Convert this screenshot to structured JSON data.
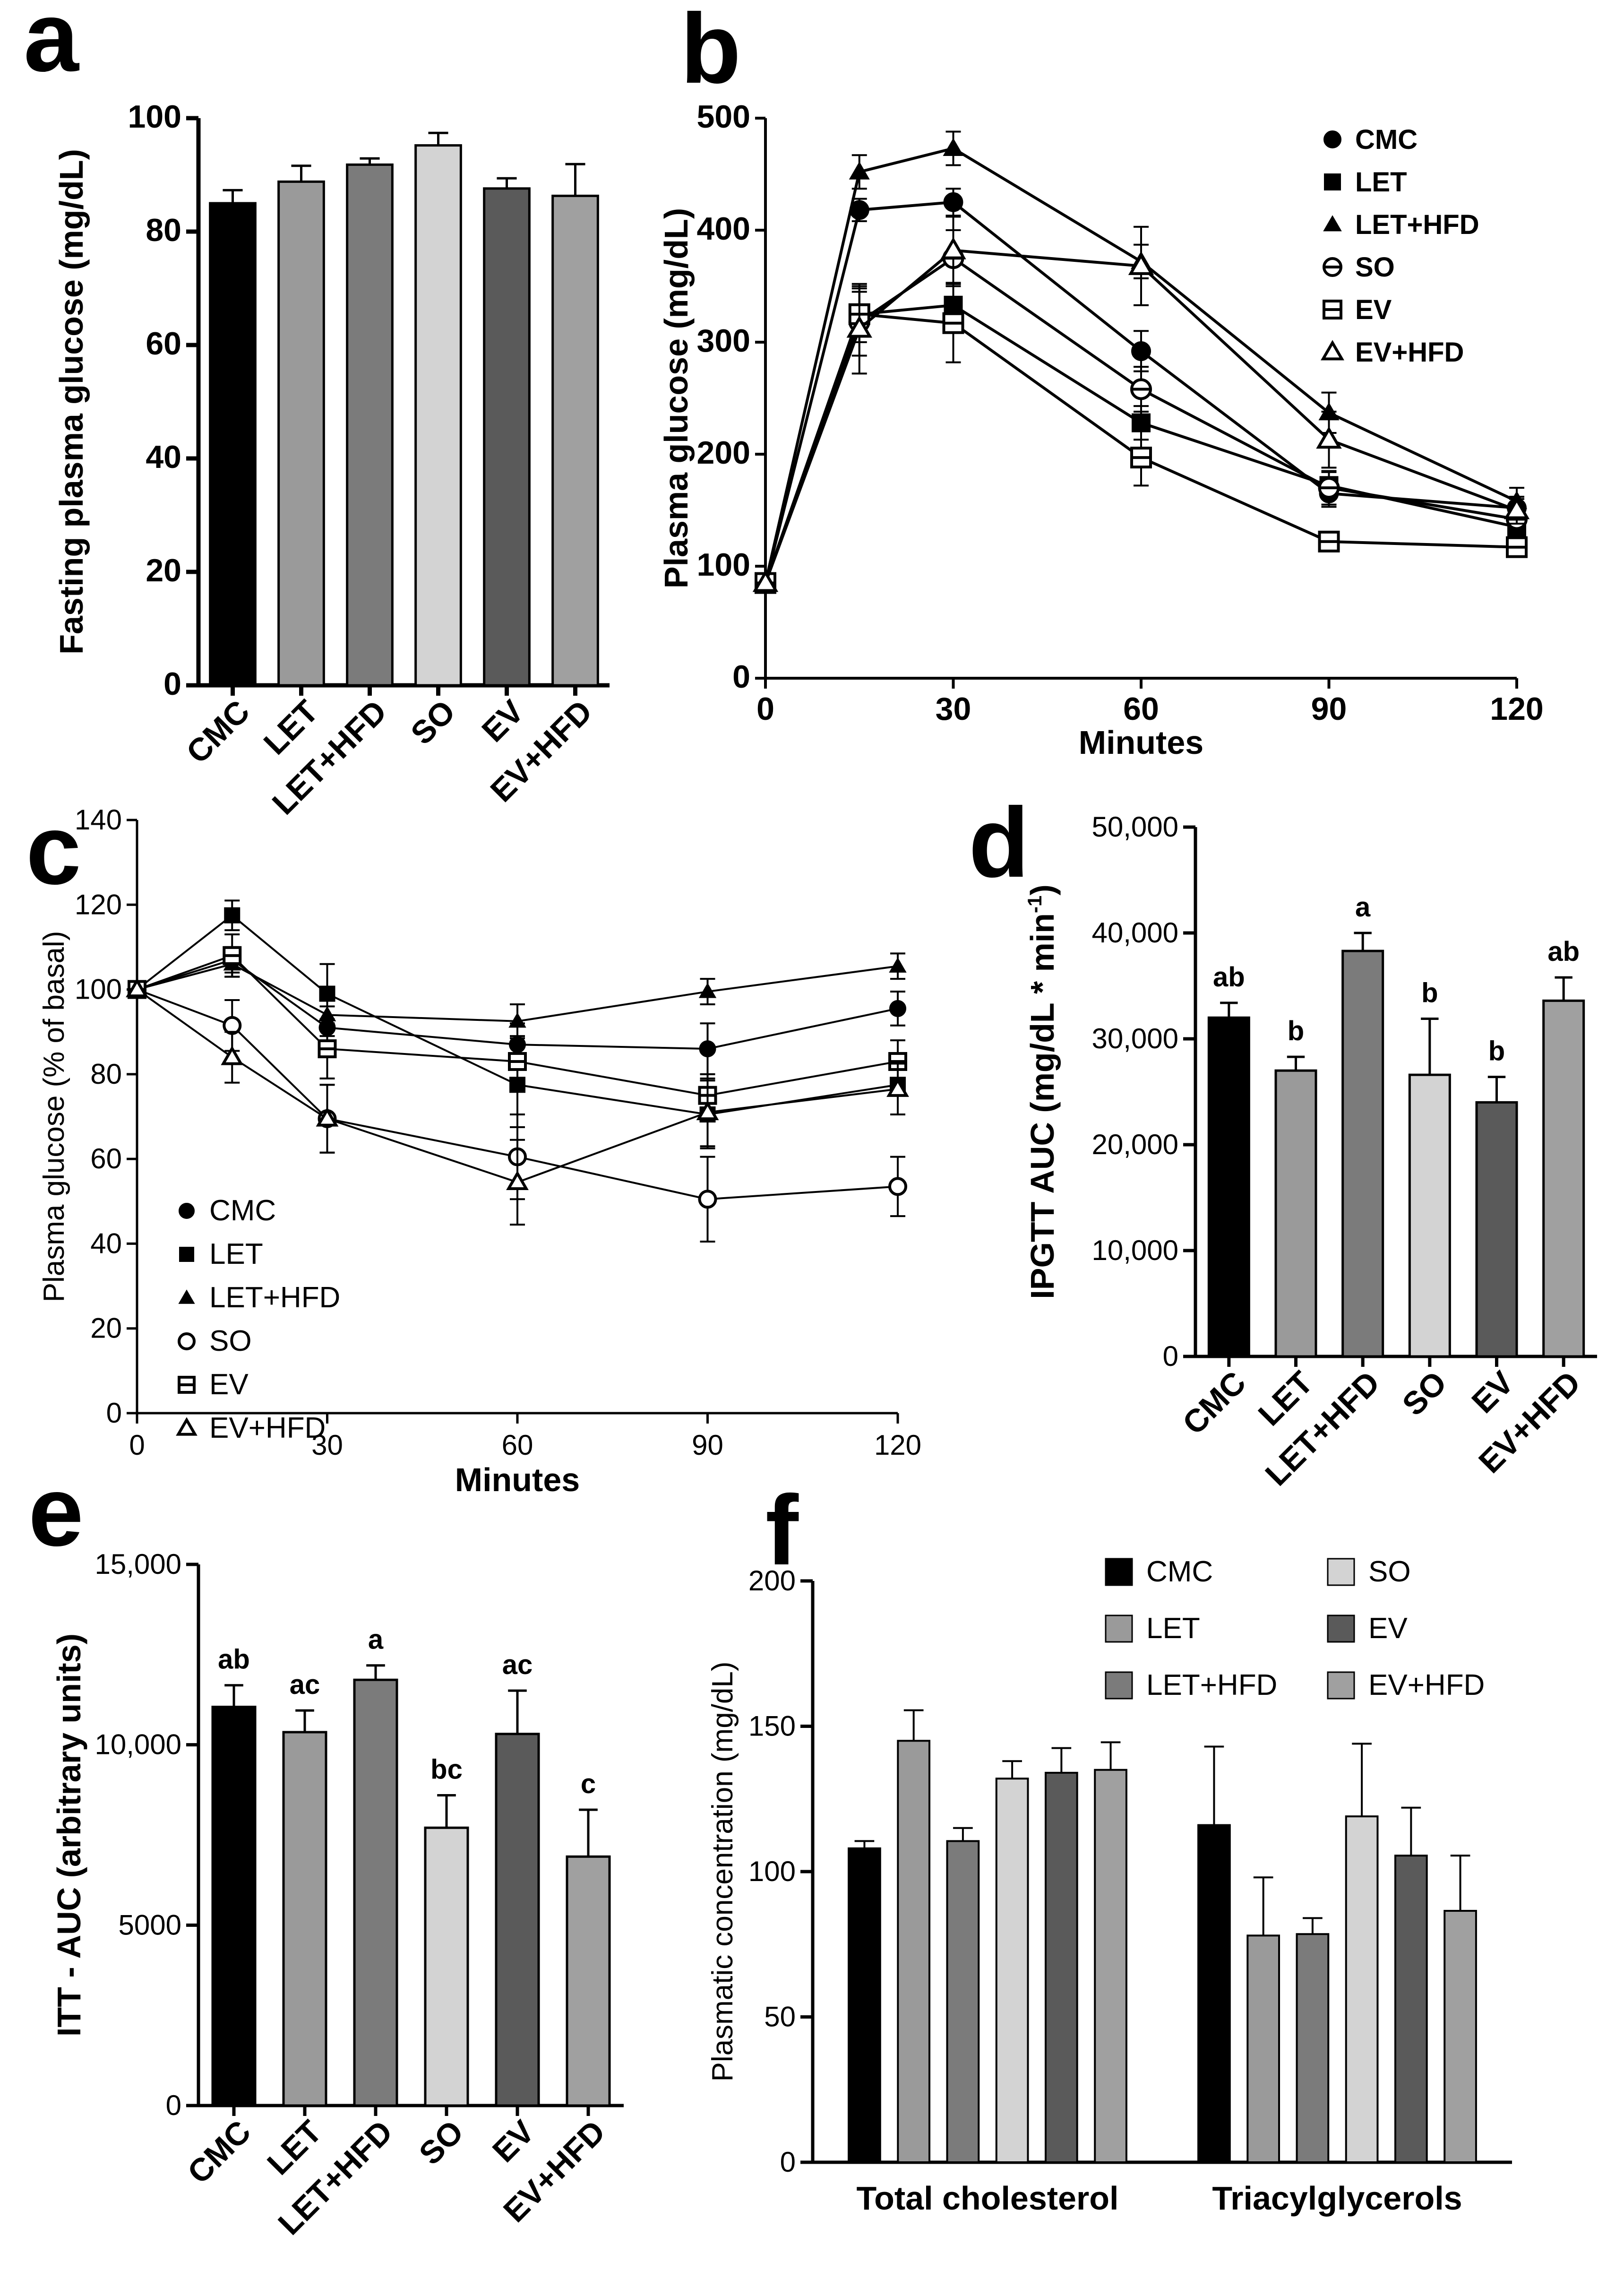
{
  "chart_data": [
    {
      "id": "a",
      "panel_label": "a",
      "type": "bar",
      "categories": [
        "CMC",
        "LET",
        "LET+HFD",
        "SO",
        "EV",
        "EV+HFD"
      ],
      "values": [
        85,
        88.8,
        91.8,
        95.2,
        87.6,
        86.3
      ],
      "errors": [
        2.3,
        2.8,
        1.1,
        2.2,
        1.8,
        5.6
      ],
      "colors": [
        "#000000",
        "#9a9a9a",
        "#7b7b7b",
        "#d3d3d3",
        "#5a5a5a",
        "#a0a0a0"
      ],
      "ylabel": "Fasting plasma glucose (mg/dL)",
      "ylim": [
        0,
        100
      ],
      "yticks": [
        0,
        20,
        40,
        60,
        80,
        100
      ],
      "ytick_labels": [
        "0",
        "20",
        "40",
        "60",
        "80",
        "100"
      ]
    },
    {
      "id": "b",
      "panel_label": "b",
      "type": "line",
      "xlabel": "Minutes",
      "ylabel": "Plasma glucose (mg/dL)",
      "xlim": [
        0,
        120
      ],
      "ylim": [
        0,
        500
      ],
      "xticks": [
        0,
        30,
        60,
        90,
        120
      ],
      "xtick_labels": [
        "0",
        "30",
        "60",
        "90",
        "120"
      ],
      "yticks": [
        0,
        100,
        200,
        300,
        400,
        500
      ],
      "ytick_labels": [
        "0",
        "100",
        "200",
        "300",
        "400",
        "500"
      ],
      "x": [
        0,
        15,
        30,
        60,
        90,
        120
      ],
      "series": [
        {
          "name": "CMC",
          "marker": "circle-filled",
          "values": [
            85,
            418,
            425,
            292,
            165,
            152
          ],
          "errors": [
            0,
            10,
            12,
            18,
            12,
            8
          ]
        },
        {
          "name": "LET",
          "marker": "square-filled",
          "values": [
            85,
            325,
            333,
            228,
            172,
            135
          ],
          "errors": [
            0,
            25,
            20,
            15,
            12,
            8
          ]
        },
        {
          "name": "LET+HFD",
          "marker": "triangle-filled",
          "values": [
            85,
            452,
            473,
            372,
            237,
            158
          ],
          "errors": [
            0,
            15,
            15,
            15,
            18,
            12
          ]
        },
        {
          "name": "SO",
          "marker": "circle-line",
          "values": [
            85,
            318,
            375,
            258,
            170,
            142
          ],
          "errors": [
            0,
            30,
            25,
            20,
            15,
            10
          ]
        },
        {
          "name": "EV",
          "marker": "square-line",
          "values": [
            85,
            325,
            317,
            197,
            122,
            117
          ],
          "errors": [
            0,
            20,
            35,
            25,
            8,
            8
          ]
        },
        {
          "name": "EV+HFD",
          "marker": "triangle-open",
          "values": [
            85,
            312,
            382,
            368,
            213,
            150
          ],
          "errors": [
            0,
            40,
            30,
            35,
            25,
            12
          ]
        }
      ]
    },
    {
      "id": "c",
      "panel_label": "c",
      "type": "line",
      "xlabel": "Minutes",
      "ylabel": "Plasma glucose (% of basal)",
      "xlim": [
        0,
        120
      ],
      "ylim": [
        0,
        140
      ],
      "xticks": [
        0,
        30,
        60,
        90,
        120
      ],
      "xtick_labels": [
        "0",
        "30",
        "60",
        "90",
        "120"
      ],
      "yticks": [
        0,
        20,
        40,
        60,
        80,
        100,
        120,
        140
      ],
      "ytick_labels": [
        "0",
        "20",
        "40",
        "60",
        "80",
        "100",
        "120",
        "140"
      ],
      "x": [
        0,
        15,
        30,
        60,
        90,
        120
      ],
      "series": [
        {
          "name": "CMC",
          "marker": "circle-filled",
          "values": [
            100,
            107,
            91,
            87,
            86,
            95.5
          ],
          "errors": [
            0,
            3,
            5,
            5,
            6,
            4
          ]
        },
        {
          "name": "LET",
          "marker": "square-filled",
          "values": [
            100,
            117.5,
            99,
            77.5,
            70.5,
            77.5
          ],
          "errors": [
            0,
            3.5,
            7,
            10,
            8,
            7
          ]
        },
        {
          "name": "LET+HFD",
          "marker": "triangle-filled",
          "values": [
            100,
            106,
            94,
            92.5,
            99.5,
            105.5
          ],
          "errors": [
            0,
            3,
            5,
            4,
            3,
            3
          ]
        },
        {
          "name": "SO",
          "marker": "circle-open",
          "values": [
            100,
            91.5,
            69.5,
            60.5,
            50.5,
            53.5
          ],
          "errors": [
            0,
            6,
            8,
            10,
            10,
            7
          ]
        },
        {
          "name": "EV",
          "marker": "square-line",
          "values": [
            100,
            108,
            86,
            83,
            75,
            83
          ],
          "errors": [
            0,
            5,
            7,
            6,
            5,
            5
          ]
        },
        {
          "name": "EV+HFD",
          "marker": "triangle-open",
          "values": [
            100,
            84,
            69.5,
            54.5,
            71,
            76.5
          ],
          "errors": [
            0,
            6,
            8,
            10,
            8,
            6
          ]
        }
      ]
    },
    {
      "id": "d",
      "panel_label": "d",
      "type": "bar",
      "categories": [
        "CMC",
        "LET",
        "LET+HFD",
        "SO",
        "EV",
        "EV+HFD"
      ],
      "values": [
        32000,
        27000,
        38300,
        26600,
        24000,
        33600
      ],
      "errors": [
        1400,
        1300,
        1700,
        5300,
        2400,
        2200
      ],
      "colors": [
        "#000000",
        "#9a9a9a",
        "#7b7b7b",
        "#d3d3d3",
        "#5a5a5a",
        "#a0a0a0"
      ],
      "significance": [
        "ab",
        "b",
        "a",
        "b",
        "b",
        "ab"
      ],
      "ylabel": "IPGTT AUC (mg/dL * min",
      "ylabel_sup": "-1",
      "ylabel_end": ")",
      "ylim": [
        0,
        50000
      ],
      "yticks": [
        0,
        10000,
        20000,
        30000,
        40000,
        50000
      ],
      "ytick_labels": [
        "0",
        "10,000",
        "20,000",
        "30,000",
        "40,000",
        "50,000"
      ]
    },
    {
      "id": "e",
      "panel_label": "e",
      "type": "bar",
      "categories": [
        "CMC",
        "LET",
        "LET+HFD",
        "SO",
        "EV",
        "EV+HFD"
      ],
      "values": [
        11050,
        10350,
        11800,
        7700,
        10300,
        6900
      ],
      "errors": [
        600,
        600,
        400,
        900,
        1200,
        1300
      ],
      "colors": [
        "#000000",
        "#9a9a9a",
        "#7b7b7b",
        "#d3d3d3",
        "#5a5a5a",
        "#a0a0a0"
      ],
      "significance": [
        "ab",
        "ac",
        "a",
        "bc",
        "ac",
        "c"
      ],
      "ylabel": "ITT - AUC (arbitrary units)",
      "ylim": [
        0,
        15000
      ],
      "yticks": [
        0,
        5000,
        10000,
        15000
      ],
      "ytick_labels": [
        "0",
        "5000",
        "10,000",
        "15,000"
      ]
    },
    {
      "id": "f",
      "panel_label": "f",
      "type": "bar",
      "groups": [
        "Total cholesterol",
        "Triacylglycerols"
      ],
      "ylabel": "Plasmatic concentration (mg/dL)",
      "ylim": [
        0,
        200
      ],
      "yticks": [
        0,
        50,
        100,
        150,
        200
      ],
      "ytick_labels": [
        "0",
        "50",
        "100",
        "150",
        "200"
      ],
      "series": [
        {
          "name": "CMC",
          "color": "#000000",
          "values": [
            108,
            116
          ],
          "errors": [
            2.5,
            27
          ]
        },
        {
          "name": "LET",
          "color": "#9a9a9a",
          "values": [
            145,
            78
          ],
          "errors": [
            10.5,
            20
          ]
        },
        {
          "name": "LET+HFD",
          "color": "#7b7b7b",
          "values": [
            110.5,
            78.5
          ],
          "errors": [
            4.5,
            5.5
          ]
        },
        {
          "name": "SO",
          "color": "#d3d3d3",
          "values": [
            132,
            119
          ],
          "errors": [
            6,
            25
          ]
        },
        {
          "name": "EV",
          "color": "#5a5a5a",
          "values": [
            134,
            105.5
          ],
          "errors": [
            8.5,
            16.5
          ]
        },
        {
          "name": "EV+HFD",
          "color": "#a0a0a0",
          "values": [
            135,
            86.5
          ],
          "errors": [
            9.5,
            19
          ]
        }
      ]
    }
  ]
}
